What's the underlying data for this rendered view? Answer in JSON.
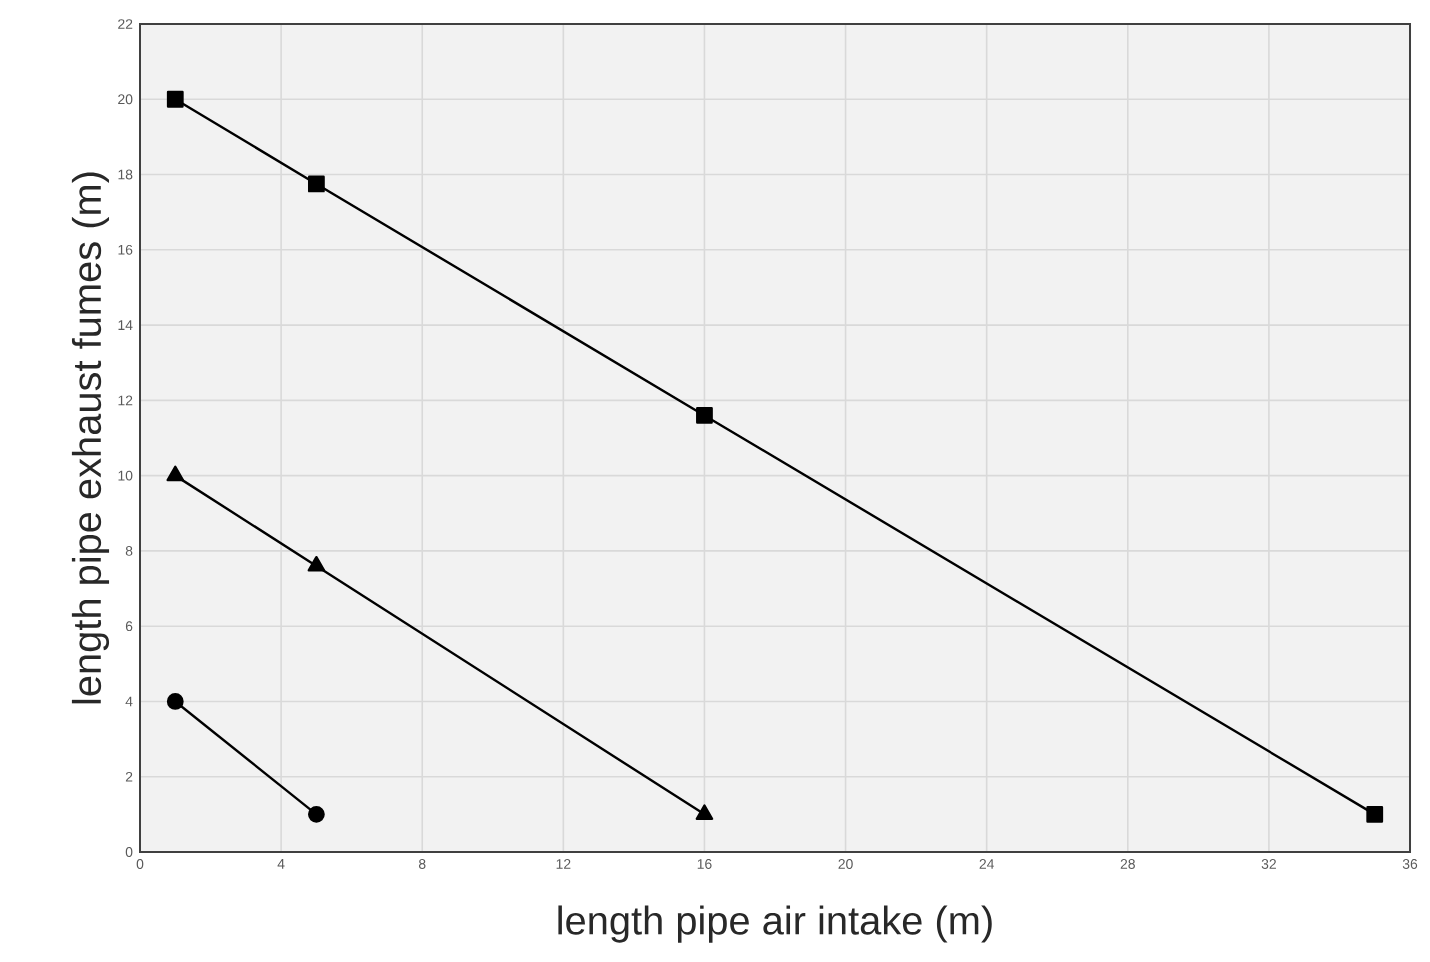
{
  "chart_data": {
    "type": "line",
    "xlabel": "length pipe air intake (m)",
    "ylabel": "length pipe exhaust fumes (m)",
    "xlim": [
      0,
      36
    ],
    "xticks": [
      0,
      4,
      8,
      12,
      16,
      20,
      24,
      28,
      32,
      36
    ],
    "ylim": [
      0,
      22
    ],
    "yticks": [
      0,
      2,
      4,
      6,
      8,
      10,
      12,
      14,
      16,
      18,
      20,
      22
    ],
    "grid": true,
    "line_style": "solid",
    "series": [
      {
        "color": "#000000",
        "marker": "square",
        "x": [
          1,
          5,
          16,
          35
        ],
        "values": [
          20,
          17.75,
          11.6,
          1
        ]
      },
      {
        "color": "#000000",
        "marker": "triangle",
        "x": [
          1,
          5,
          16
        ],
        "values": [
          10,
          7.6,
          1
        ]
      },
      {
        "color": "#000000",
        "marker": "circle",
        "x": [
          1,
          5
        ],
        "values": [
          4,
          1
        ]
      }
    ]
  }
}
